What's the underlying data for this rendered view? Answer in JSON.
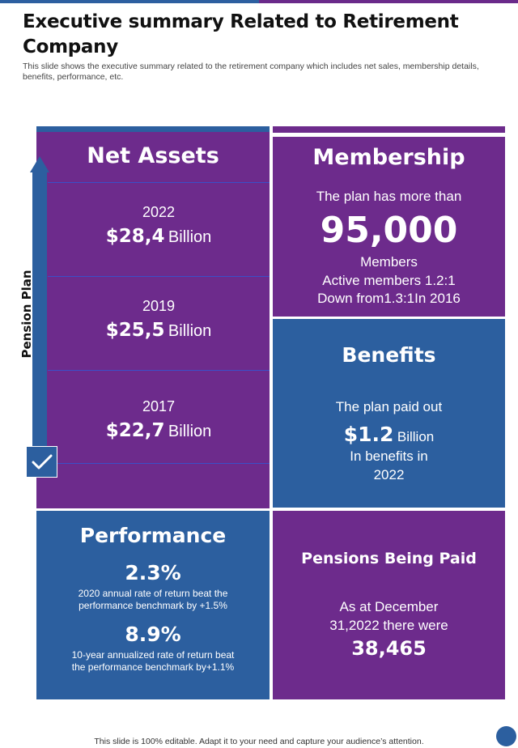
{
  "title": "Executive summary Related to Retirement Company",
  "subtitle": "This slide shows the executive summary related to the retirement company which includes net sales, membership details, benefits, performance, etc.",
  "net_assets": {
    "heading": "Net Assets",
    "side_label": "Pension Plan",
    "rows": [
      {
        "year": "2022",
        "amount": "$28,4",
        "unit": "Billion"
      },
      {
        "year": "2019",
        "amount": "$25,5",
        "unit": "Billion"
      },
      {
        "year": "2017",
        "amount": "$22,7",
        "unit": "Billion"
      }
    ]
  },
  "membership": {
    "heading": "Membership",
    "intro": "The plan has more than",
    "count": "95,000",
    "count_label": "Members",
    "active": "Active members  1.2:1",
    "down": "Down from1.3:1In 2016"
  },
  "benefits": {
    "heading": "Benefits",
    "intro": "The plan paid out",
    "amount": "$1.2",
    "unit": "Billion",
    "line3": "In benefits in",
    "year": "2022"
  },
  "performance": {
    "heading": "Performance",
    "metric1_value": "2.3%",
    "metric1_desc": "2020 annual rate of return beat the performance benchmark by +1.5%",
    "metric2_value": "8.9%",
    "metric2_desc": "10-year annualized rate of return beat the performance benchmark by+1.1%"
  },
  "pensions": {
    "heading": "Pensions Being Paid",
    "line1": "As at December",
    "line2": "31,2022 there were",
    "count": "38,465"
  },
  "footer": "This slide is 100% editable. Adapt it to your need and capture your audience’s attention.",
  "colors": {
    "purple": "#6d2b8c",
    "blue": "#2c5f9f"
  },
  "icons": {
    "arrow": "arrow-up-icon",
    "check": "check-icon"
  }
}
